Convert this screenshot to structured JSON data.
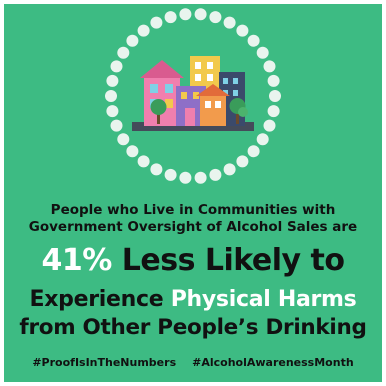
{
  "subheading_line1": "People who Live in Communities with",
  "subheading_line2": "Government Oversight of Alcohol Sales are",
  "headline": {
    "percent": "41%",
    "rest": "Less Likely to"
  },
  "line2": {
    "prefix": "Experience",
    "highlight": "Physical Harms"
  },
  "line3": "from Other People’s Drinking",
  "hashtags": [
    "#ProofIsInTheNumbers",
    "#AlcoholAwarenessMonth"
  ],
  "colors": {
    "background": "#3dbb83",
    "dots": "#e9f4ee",
    "text_dark": "#111111",
    "text_highlight": "#ffffff"
  },
  "icons": [
    "dotted-circle-frame",
    "colorful-city-buildings-illustration"
  ]
}
